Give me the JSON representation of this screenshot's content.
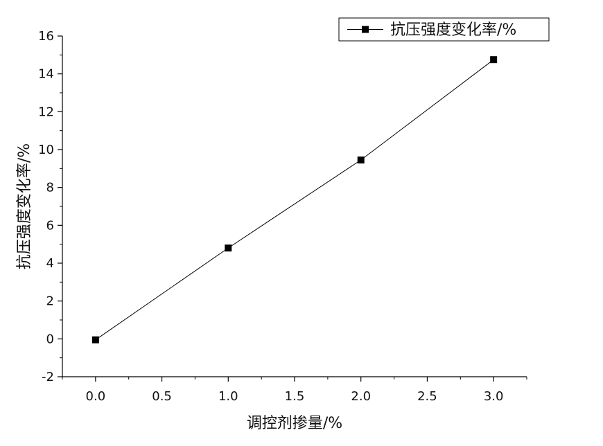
{
  "chart_data": {
    "type": "line",
    "title": "",
    "xlabel": "调控剂掺量/%",
    "ylabel": "抗压强度变化率/%",
    "xlim": [
      -0.25,
      3.25
    ],
    "ylim": [
      -2,
      16
    ],
    "x_ticks": [
      "0.0",
      "0.5",
      "1.0",
      "1.5",
      "2.0",
      "2.5",
      "3.0"
    ],
    "y_ticks": [
      "-2",
      "0",
      "2",
      "4",
      "6",
      "8",
      "10",
      "12",
      "14",
      "16"
    ],
    "grid": false,
    "legend_position": "top-right",
    "series": [
      {
        "name": "抗压强度变化率/%",
        "marker": "square",
        "color": "#000000",
        "x": [
          0.0,
          1.0,
          2.0,
          3.0
        ],
        "y": [
          -0.05,
          4.8,
          9.45,
          14.75
        ]
      }
    ]
  }
}
